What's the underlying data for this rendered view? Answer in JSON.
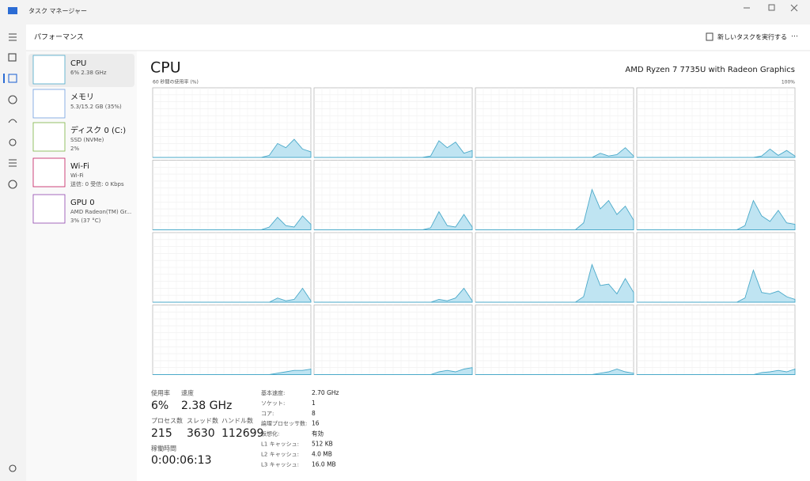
{
  "titlebar": {
    "title": "タスク マネージャー"
  },
  "header": {
    "title": "パフォーマンス",
    "run_task": "新しいタスクを実行する"
  },
  "sidebar": {
    "items": [
      {
        "name": "CPU",
        "lines": [
          "6% 2.38 GHz"
        ]
      },
      {
        "name": "メモリ",
        "lines": [
          "5.3/15.2 GB (35%)"
        ]
      },
      {
        "name": "ディスク 0 (C:)",
        "lines": [
          "SSD (NVMe)",
          "2%"
        ]
      },
      {
        "name": "Wi-Fi",
        "lines": [
          "Wi-Fi",
          "送信: 0 受信: 0 Kbps"
        ]
      },
      {
        "name": "GPU 0",
        "lines": [
          "AMD Radeon(TM) Gr...",
          "3% (37 °C)"
        ]
      }
    ]
  },
  "main": {
    "title": "CPU",
    "processor": "AMD Ryzen 7 7735U with Radeon Graphics",
    "graph_label": "60 秒間の使用率 (%)",
    "graph_max": {
      "value": 100,
      "label": "100%"
    },
    "cores": [
      {
        "values": [
          0,
          0,
          0,
          0,
          0,
          0,
          0,
          0,
          0,
          0,
          0,
          0,
          0,
          0,
          3,
          20,
          14,
          26,
          12,
          8
        ]
      },
      {
        "values": [
          0,
          0,
          0,
          0,
          0,
          0,
          0,
          0,
          0,
          0,
          0,
          0,
          0,
          0,
          2,
          24,
          14,
          22,
          6,
          10
        ]
      },
      {
        "values": [
          0,
          0,
          0,
          0,
          0,
          0,
          0,
          0,
          0,
          0,
          0,
          0,
          0,
          0,
          0,
          6,
          2,
          4,
          14,
          2
        ]
      },
      {
        "values": [
          0,
          0,
          0,
          0,
          0,
          0,
          0,
          0,
          0,
          0,
          0,
          0,
          0,
          0,
          0,
          2,
          12,
          3,
          10,
          2
        ]
      },
      {
        "values": [
          0,
          0,
          0,
          0,
          0,
          0,
          0,
          0,
          0,
          0,
          0,
          0,
          0,
          0,
          4,
          18,
          6,
          4,
          20,
          8
        ]
      },
      {
        "values": [
          0,
          0,
          0,
          0,
          0,
          0,
          0,
          0,
          0,
          0,
          0,
          0,
          0,
          0,
          3,
          26,
          6,
          4,
          22,
          4
        ]
      },
      {
        "values": [
          0,
          0,
          0,
          0,
          0,
          0,
          0,
          0,
          0,
          0,
          0,
          0,
          0,
          10,
          58,
          30,
          42,
          22,
          34,
          14
        ]
      },
      {
        "values": [
          0,
          0,
          0,
          0,
          0,
          0,
          0,
          0,
          0,
          0,
          0,
          0,
          0,
          6,
          42,
          20,
          12,
          28,
          10,
          8
        ]
      },
      {
        "values": [
          0,
          0,
          0,
          0,
          0,
          0,
          0,
          0,
          0,
          0,
          0,
          0,
          0,
          0,
          0,
          6,
          2,
          4,
          20,
          2
        ]
      },
      {
        "values": [
          0,
          0,
          0,
          0,
          0,
          0,
          0,
          0,
          0,
          0,
          0,
          0,
          0,
          0,
          0,
          4,
          2,
          6,
          20,
          2
        ]
      },
      {
        "values": [
          0,
          0,
          0,
          0,
          0,
          0,
          0,
          0,
          0,
          0,
          0,
          0,
          0,
          8,
          54,
          24,
          26,
          12,
          34,
          14
        ]
      },
      {
        "values": [
          0,
          0,
          0,
          0,
          0,
          0,
          0,
          0,
          0,
          0,
          0,
          0,
          0,
          6,
          46,
          14,
          12,
          16,
          8,
          4
        ]
      },
      {
        "values": [
          0,
          0,
          0,
          0,
          0,
          0,
          0,
          0,
          0,
          0,
          0,
          0,
          0,
          0,
          0,
          2,
          4,
          6,
          6,
          8
        ]
      },
      {
        "values": [
          0,
          0,
          0,
          0,
          0,
          0,
          0,
          0,
          0,
          0,
          0,
          0,
          0,
          0,
          0,
          4,
          6,
          4,
          8,
          10
        ]
      },
      {
        "values": [
          0,
          0,
          0,
          0,
          0,
          0,
          0,
          0,
          0,
          0,
          0,
          0,
          0,
          0,
          0,
          2,
          4,
          8,
          4,
          2
        ]
      },
      {
        "values": [
          0,
          0,
          0,
          0,
          0,
          0,
          0,
          0,
          0,
          0,
          0,
          0,
          0,
          0,
          0,
          3,
          4,
          6,
          4,
          8
        ]
      }
    ]
  },
  "stats": {
    "usage": {
      "label": "使用率",
      "value": "6%"
    },
    "speed": {
      "label": "速度",
      "value": "2.38 GHz"
    },
    "processes": {
      "label": "プロセス数",
      "value": "215"
    },
    "threads": {
      "label": "スレッド数",
      "value": "3630"
    },
    "handles": {
      "label": "ハンドル数",
      "value": "112699"
    },
    "uptime": {
      "label": "稼働時間",
      "value": "0:00:06:13"
    }
  },
  "details": [
    {
      "label": "基本速度:",
      "value": "2.70 GHz"
    },
    {
      "label": "ソケット:",
      "value": "1"
    },
    {
      "label": "コア:",
      "value": "8"
    },
    {
      "label": "論理プロセッサ数:",
      "value": "16"
    },
    {
      "label": "仮想化:",
      "value": "有効"
    },
    {
      "label": "L1 キャッシュ:",
      "value": "512 KB"
    },
    {
      "label": "L2 キャッシュ:",
      "value": "4.0 MB"
    },
    {
      "label": "L3 キャッシュ:",
      "value": "16.0 MB"
    }
  ]
}
